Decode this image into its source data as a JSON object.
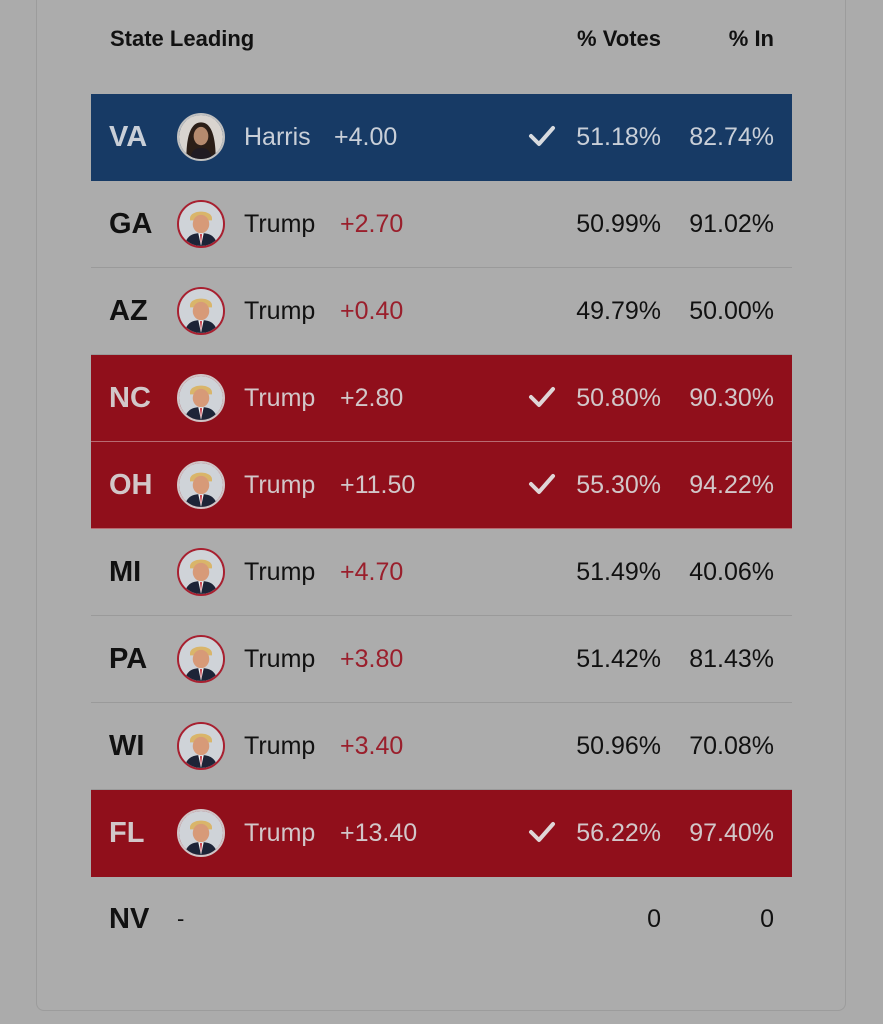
{
  "header": {
    "state_leading": "State Leading",
    "pct_votes": "% Votes",
    "pct_in": "% In"
  },
  "colors": {
    "dem_winner_bg": "#173a65",
    "rep_winner_bg": "#900f1b",
    "rep_margin_text": "#9a1f2c",
    "page_bg": "#ababab"
  },
  "rows": [
    {
      "state": "VA",
      "candidate": "Harris",
      "margin": "+4.00",
      "votes": "51.18%",
      "pct_in": "82.74%",
      "called": true,
      "party": "dem",
      "avatar": "harris-avatar"
    },
    {
      "state": "GA",
      "candidate": "Trump",
      "margin": "+2.70",
      "votes": "50.99%",
      "pct_in": "91.02%",
      "called": false,
      "party": "rep",
      "avatar": "trump-avatar"
    },
    {
      "state": "AZ",
      "candidate": "Trump",
      "margin": "+0.40",
      "votes": "49.79%",
      "pct_in": "50.00%",
      "called": false,
      "party": "rep",
      "avatar": "trump-avatar"
    },
    {
      "state": "NC",
      "candidate": "Trump",
      "margin": "+2.80",
      "votes": "50.80%",
      "pct_in": "90.30%",
      "called": true,
      "party": "rep",
      "avatar": "trump-avatar"
    },
    {
      "state": "OH",
      "candidate": "Trump",
      "margin": "+11.50",
      "votes": "55.30%",
      "pct_in": "94.22%",
      "called": true,
      "party": "rep",
      "avatar": "trump-avatar"
    },
    {
      "state": "MI",
      "candidate": "Trump",
      "margin": "+4.70",
      "votes": "51.49%",
      "pct_in": "40.06%",
      "called": false,
      "party": "rep",
      "avatar": "trump-avatar"
    },
    {
      "state": "PA",
      "candidate": "Trump",
      "margin": "+3.80",
      "votes": "51.42%",
      "pct_in": "81.43%",
      "called": false,
      "party": "rep",
      "avatar": "trump-avatar"
    },
    {
      "state": "WI",
      "candidate": "Trump",
      "margin": "+3.40",
      "votes": "50.96%",
      "pct_in": "70.08%",
      "called": false,
      "party": "rep",
      "avatar": "trump-avatar"
    },
    {
      "state": "FL",
      "candidate": "Trump",
      "margin": "+13.40",
      "votes": "56.22%",
      "pct_in": "97.40%",
      "called": true,
      "party": "rep",
      "avatar": "trump-avatar"
    },
    {
      "state": "NV",
      "candidate": "-",
      "margin": "",
      "votes": "0",
      "pct_in": "0",
      "called": false,
      "party": "none",
      "avatar": ""
    }
  ]
}
